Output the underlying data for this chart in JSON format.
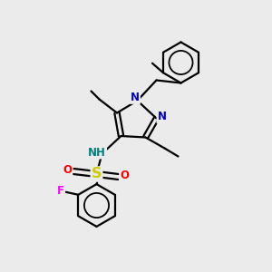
{
  "background_color": "#ebebeb",
  "bond_color": "#000000",
  "bond_width": 1.6,
  "atom_colors": {
    "N": "#0000cc",
    "NH": "#008080",
    "S": "#cccc00",
    "O": "#ff0000",
    "F": "#ff00ff",
    "C": "#000000"
  },
  "font_size": 8.5,
  "fig_size": [
    3.0,
    3.0
  ],
  "dpi": 100
}
